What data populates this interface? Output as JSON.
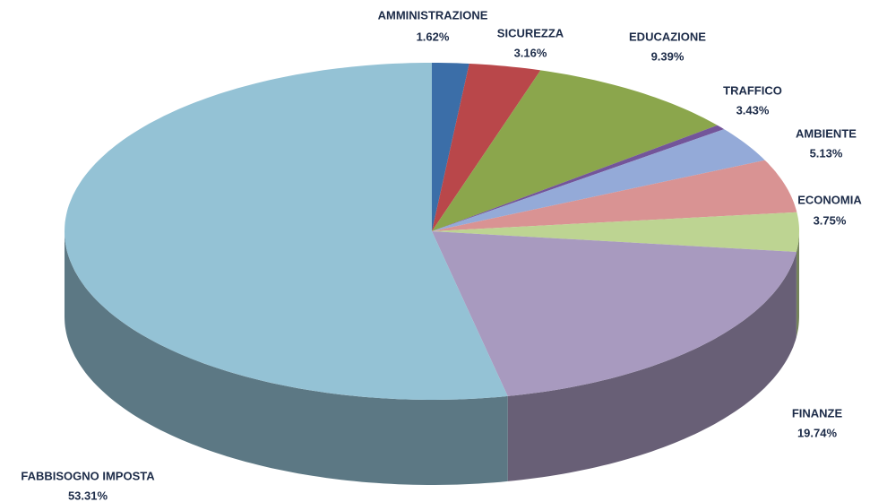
{
  "chart_data": {
    "type": "pie3d",
    "categories": [
      "AMMINISTRAZIONE",
      "SICUREZZA",
      "EDUCAZIONE",
      null,
      "TRAFFICO",
      "AMBIENTE",
      "ECONOMIA",
      "FINANZE",
      "FABBISOGNO IMPOSTA"
    ],
    "values": [
      1.62,
      3.16,
      9.39,
      0.47,
      3.43,
      5.13,
      3.75,
      19.74,
      53.31
    ],
    "value_labels": [
      "1.62%",
      "3.16%",
      "9.39%",
      null,
      "3.43%",
      "5.13%",
      "3.75%",
      "19.74%",
      "53.31%"
    ],
    "colors": [
      "#3b6ea8",
      "#b9474a",
      "#8ba64c",
      "#73559a",
      "#94aad8",
      "#d99393",
      "#bdd492",
      "#a89abf",
      "#94c2d5"
    ]
  }
}
